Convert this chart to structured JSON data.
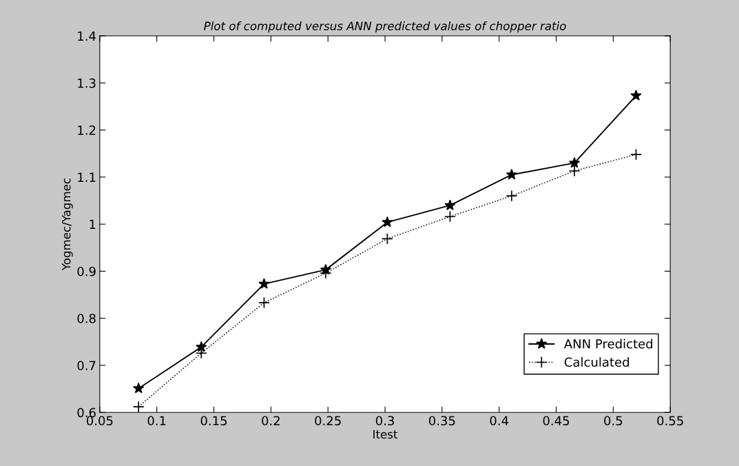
{
  "chart_data": {
    "type": "line",
    "title": "Plot of computed versus ANN predicted values of chopper ratio",
    "xlabel": "Itest",
    "ylabel": "Yogmec/Yagmec",
    "x": [
      0.084,
      0.139,
      0.194,
      0.248,
      0.302,
      0.357,
      0.411,
      0.466,
      0.52
    ],
    "series": [
      {
        "name": "ANN Predicted",
        "color": "#000000",
        "marker": "star",
        "line_style": "solid",
        "values": [
          0.651,
          0.739,
          0.873,
          0.903,
          1.004,
          1.04,
          1.105,
          1.13,
          1.273
        ]
      },
      {
        "name": "Calculated",
        "color": "#000000",
        "marker": "cross",
        "line_style": "dotted",
        "values": [
          0.612,
          0.726,
          0.833,
          0.896,
          0.969,
          1.016,
          1.06,
          1.113,
          1.148
        ]
      }
    ],
    "xlim": [
      0.05,
      0.55
    ],
    "xticks": [
      0.05,
      0.1,
      0.15,
      0.2,
      0.25,
      0.3,
      0.35,
      0.4,
      0.45,
      0.5,
      0.55
    ],
    "ylim": [
      0.6,
      1.4
    ],
    "yticks": [
      0.6,
      0.7,
      0.8,
      0.9,
      1,
      1.1,
      1.2,
      1.3,
      1.4
    ],
    "grid": false,
    "legend": "bottom right"
  }
}
